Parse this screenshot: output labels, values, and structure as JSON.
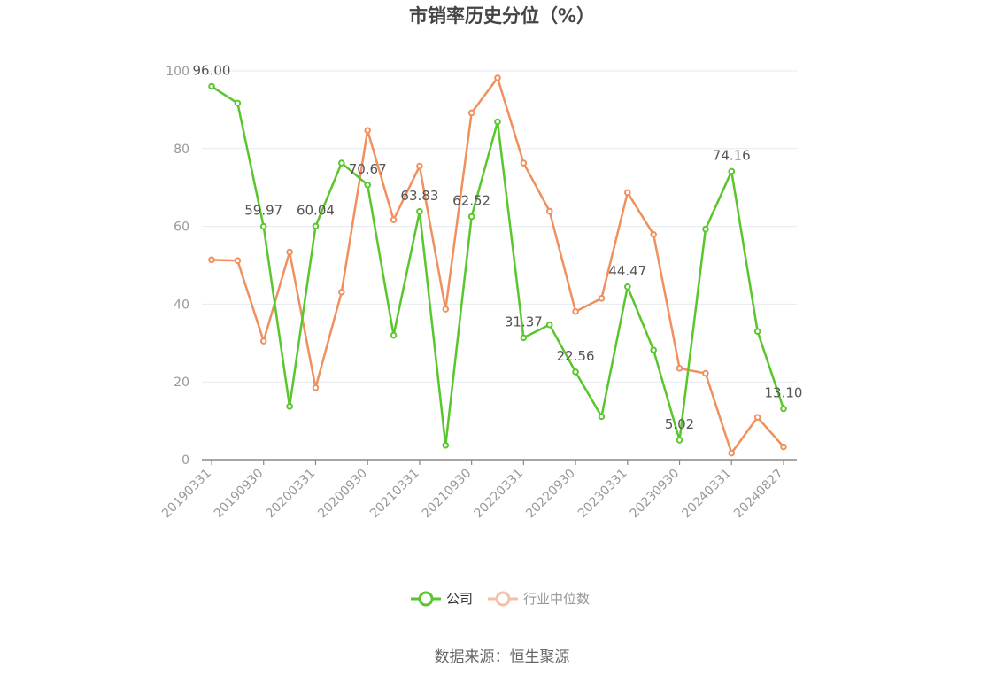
{
  "chart_data": {
    "type": "line",
    "title": "市销率历史分位（%）",
    "ylim": [
      0,
      100
    ],
    "yticks": [
      0,
      20,
      40,
      60,
      80,
      100
    ],
    "x_tick_labels": [
      "20190331",
      "20190930",
      "20200331",
      "20200930",
      "20210331",
      "20210930",
      "20220331",
      "20220930",
      "20230331",
      "20230930",
      "20240331",
      "20240827"
    ],
    "x": [
      "20190331",
      "20190630",
      "20190930",
      "20191231",
      "20200331",
      "20200630",
      "20200930",
      "20201231",
      "20210331",
      "20210630",
      "20210930",
      "20211231",
      "20220331",
      "20220630",
      "20220930",
      "20221231",
      "20230331",
      "20230630",
      "20230930",
      "20231231",
      "20240331",
      "20240630",
      "20240827"
    ],
    "grid": true,
    "legend_position": "bottom",
    "series": [
      {
        "name": "公司",
        "color": "#5ac62d",
        "values": [
          96.0,
          91.7,
          59.97,
          13.7,
          60.04,
          76.3,
          70.67,
          32.0,
          63.83,
          3.7,
          62.52,
          86.9,
          31.37,
          34.7,
          22.56,
          11.1,
          44.47,
          28.2,
          5.02,
          59.3,
          74.16,
          33.0,
          13.1
        ],
        "labels": [
          "96.00",
          "",
          "59.97",
          "",
          "60.04",
          "",
          "70.67",
          "",
          "63.83",
          "",
          "62.52",
          "",
          "31.37",
          "",
          "22.56",
          "",
          "44.47",
          "",
          "5.02",
          "",
          "74.16",
          "",
          "13.10"
        ]
      },
      {
        "name": "行业中位数",
        "color": "#f0905e",
        "values": [
          51.4,
          51.2,
          30.5,
          53.4,
          18.5,
          43.1,
          84.7,
          61.7,
          75.5,
          38.7,
          89.2,
          98.2,
          76.3,
          63.9,
          38.1,
          41.5,
          68.7,
          57.9,
          23.5,
          22.2,
          1.7,
          10.9,
          3.3
        ]
      }
    ],
    "source": "数据来源：恒生聚源"
  }
}
